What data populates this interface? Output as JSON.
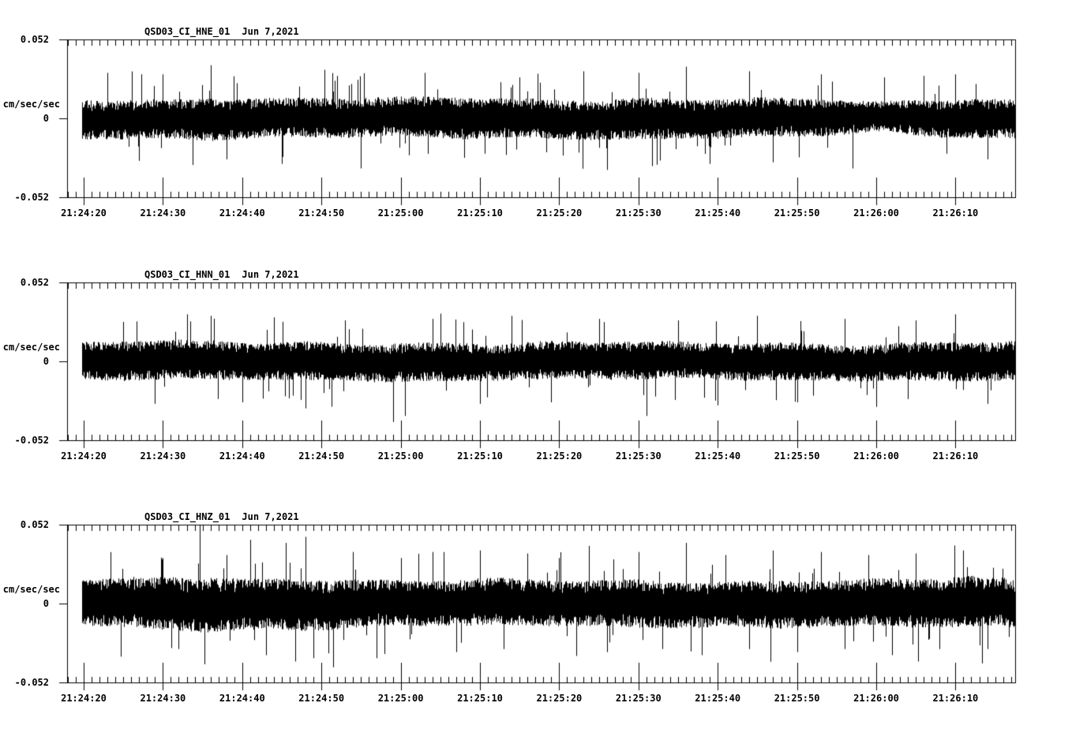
{
  "page": {
    "background_color": "#ffffff",
    "ink_color": "#000000"
  },
  "chart_data": [
    {
      "type": "line",
      "title": "QSD03_CI_HNE_01",
      "date_label": "Jun 7,2021",
      "ylabel": "cm/sec/sec",
      "ytick_labels": [
        "0.052",
        "0",
        "-0.052"
      ],
      "ylim": [
        -0.052,
        0.052
      ],
      "x_tick_labels": [
        "21:24:20",
        "21:24:30",
        "21:24:40",
        "21:24:50",
        "21:25:00",
        "21:25:10",
        "21:25:20",
        "21:25:30",
        "21:25:40",
        "21:25:50",
        "21:26:00",
        "21:26:10"
      ],
      "x_major_step_seconds": 10,
      "x_minor_step_seconds": 1,
      "x_start_label": "21:24:18",
      "x_end_label": "21:26:17",
      "grid": false,
      "legend": "none",
      "seed": 20210607,
      "envelope_t": [
        18,
        24,
        30,
        36,
        42,
        48,
        54,
        60,
        66,
        72,
        78,
        84,
        90,
        96,
        102,
        108,
        114,
        120,
        126,
        132,
        138
      ],
      "envelope_amp": [
        0.013,
        0.013,
        0.013,
        0.014,
        0.013,
        0.013,
        0.013,
        0.013,
        0.014,
        0.013,
        0.013,
        0.013,
        0.014,
        0.013,
        0.013,
        0.013,
        0.012,
        0.01,
        0.012,
        0.013,
        0.013
      ],
      "spikes": [
        [
          23,
          0.03
        ],
        [
          27,
          -0.028
        ],
        [
          36,
          0.035
        ],
        [
          38,
          -0.027
        ],
        [
          45,
          -0.03
        ],
        [
          52,
          0.028
        ],
        [
          55,
          -0.033
        ],
        [
          63,
          0.03
        ],
        [
          68,
          -0.026
        ],
        [
          75,
          0.027
        ],
        [
          83,
          0.031
        ],
        [
          86,
          -0.034
        ],
        [
          90,
          0.03
        ],
        [
          96,
          0.034
        ],
        [
          99,
          -0.03
        ],
        [
          104,
          0.031
        ],
        [
          107,
          -0.029
        ],
        [
          113,
          0.029
        ],
        [
          117,
          -0.033
        ],
        [
          121,
          0.027
        ],
        [
          126,
          0.028
        ],
        [
          130,
          0.029
        ],
        [
          134,
          -0.027
        ]
      ]
    },
    {
      "type": "line",
      "title": "QSD03_CI_HNN_01",
      "date_label": "Jun 7,2021",
      "ylabel": "cm/sec/sec",
      "ytick_labels": [
        "0.052",
        "0",
        "-0.052"
      ],
      "ylim": [
        -0.052,
        0.052
      ],
      "x_tick_labels": [
        "21:24:20",
        "21:24:30",
        "21:24:40",
        "21:24:50",
        "21:25:00",
        "21:25:10",
        "21:25:20",
        "21:25:30",
        "21:25:40",
        "21:25:50",
        "21:26:00",
        "21:26:10"
      ],
      "x_major_step_seconds": 10,
      "x_minor_step_seconds": 1,
      "x_start_label": "21:24:18",
      "x_end_label": "21:26:17",
      "grid": false,
      "legend": "none",
      "seed": 777001,
      "envelope_t": [
        18,
        24,
        30,
        36,
        42,
        48,
        54,
        60,
        66,
        72,
        78,
        84,
        90,
        96,
        102,
        108,
        114,
        120,
        126,
        132,
        138
      ],
      "envelope_amp": [
        0.012,
        0.013,
        0.013,
        0.013,
        0.012,
        0.013,
        0.012,
        0.013,
        0.013,
        0.012,
        0.013,
        0.012,
        0.013,
        0.012,
        0.012,
        0.013,
        0.012,
        0.012,
        0.013,
        0.013,
        0.013
      ],
      "spikes": [
        [
          25,
          0.026
        ],
        [
          29,
          -0.028
        ],
        [
          33,
          0.031
        ],
        [
          36,
          0.03
        ],
        [
          40,
          -0.027
        ],
        [
          44,
          0.029
        ],
        [
          48,
          -0.031
        ],
        [
          53,
          0.027
        ],
        [
          59,
          -0.04
        ],
        [
          60.5,
          -0.036
        ],
        [
          64,
          0.028
        ],
        [
          70,
          -0.028
        ],
        [
          74,
          0.03
        ],
        [
          79,
          -0.027
        ],
        [
          85,
          0.028
        ],
        [
          91,
          -0.036
        ],
        [
          95,
          0.027
        ],
        [
          100,
          -0.029
        ],
        [
          105,
          0.03
        ],
        [
          110,
          -0.027
        ],
        [
          116,
          0.028
        ],
        [
          120,
          -0.03
        ],
        [
          125,
          0.027
        ],
        [
          130,
          0.031
        ],
        [
          134,
          -0.028
        ]
      ]
    },
    {
      "type": "line",
      "title": "QSD03_CI_HNZ_01",
      "date_label": "Jun 7,2021",
      "ylabel": "cm/sec/sec",
      "ytick_labels": [
        "0.052",
        "0",
        "-0.052"
      ],
      "ylim": [
        -0.052,
        0.052
      ],
      "x_tick_labels": [
        "21:24:20",
        "21:24:30",
        "21:24:40",
        "21:24:50",
        "21:25:00",
        "21:25:10",
        "21:25:20",
        "21:25:30",
        "21:25:40",
        "21:25:50",
        "21:26:00",
        "21:26:10"
      ],
      "x_major_step_seconds": 10,
      "x_minor_step_seconds": 1,
      "x_start_label": "21:24:18",
      "x_end_label": "21:26:17",
      "grid": false,
      "legend": "none",
      "seed": 424242,
      "envelope_t": [
        18,
        24,
        30,
        36,
        42,
        48,
        54,
        60,
        66,
        72,
        78,
        84,
        90,
        96,
        102,
        108,
        114,
        120,
        126,
        132,
        138
      ],
      "envelope_amp": [
        0.015,
        0.016,
        0.018,
        0.018,
        0.017,
        0.017,
        0.016,
        0.015,
        0.015,
        0.016,
        0.015,
        0.015,
        0.016,
        0.015,
        0.015,
        0.016,
        0.015,
        0.016,
        0.016,
        0.017,
        0.016
      ],
      "spikes": [
        [
          30,
          0.03
        ],
        [
          32,
          -0.03
        ],
        [
          34.6,
          0.052
        ],
        [
          35.2,
          -0.04
        ],
        [
          38,
          0.032
        ],
        [
          41,
          0.042
        ],
        [
          43,
          -0.034
        ],
        [
          45.5,
          0.04
        ],
        [
          48,
          0.044
        ],
        [
          49,
          -0.036
        ],
        [
          51.5,
          -0.042
        ],
        [
          54,
          0.034
        ],
        [
          57,
          -0.036
        ],
        [
          60,
          0.03
        ],
        [
          64,
          0.034
        ],
        [
          67,
          -0.032
        ],
        [
          70,
          0.035
        ],
        [
          73,
          -0.03
        ],
        [
          76,
          0.033
        ],
        [
          80,
          0.03
        ],
        [
          83.7,
          0.038
        ],
        [
          86,
          -0.032
        ],
        [
          90,
          0.034
        ],
        [
          93,
          -0.03
        ],
        [
          96,
          0.04
        ],
        [
          98,
          -0.034
        ],
        [
          101,
          0.032
        ],
        [
          104,
          -0.03
        ],
        [
          107,
          0.035
        ],
        [
          110,
          -0.032
        ],
        [
          113,
          0.034
        ],
        [
          116,
          -0.03
        ],
        [
          119,
          0.032
        ],
        [
          122,
          -0.034
        ],
        [
          125,
          0.033
        ],
        [
          128,
          -0.03
        ],
        [
          131,
          0.035
        ],
        [
          134,
          -0.03
        ]
      ]
    }
  ]
}
